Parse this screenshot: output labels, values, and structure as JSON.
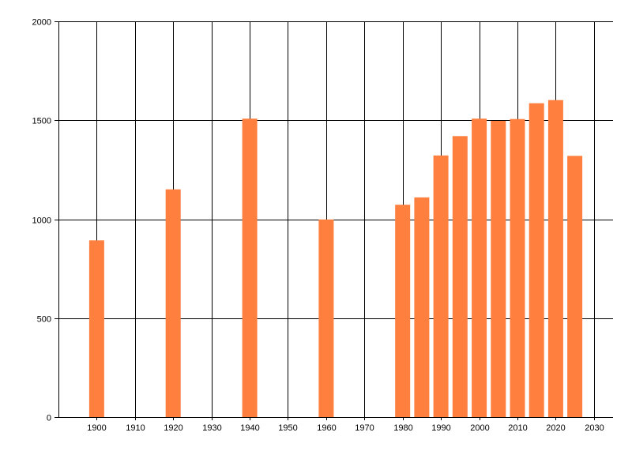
{
  "chart_data": {
    "type": "bar",
    "x": [
      1900,
      1920,
      1940,
      1960,
      1980,
      1985,
      1990,
      1995,
      2000,
      2005,
      2010,
      2015,
      2020,
      2025
    ],
    "values": [
      893,
      1151,
      1508,
      999,
      1073,
      1110,
      1322,
      1420,
      1508,
      1497,
      1506,
      1586,
      1602,
      1320
    ],
    "xlim": [
      1890,
      2035
    ],
    "ylim": [
      0,
      2000
    ],
    "x_ticks": [
      "1900",
      "1910",
      "1920",
      "1930",
      "1940",
      "1950",
      "1960",
      "1970",
      "1980",
      "1990",
      "2000",
      "2010",
      "2020",
      "2030"
    ],
    "y_ticks": [
      "0",
      "500",
      "1000",
      "1500",
      "2000"
    ],
    "bar_color": "#ff7f3f",
    "grid": true,
    "title": "",
    "xlabel": "",
    "ylabel": ""
  }
}
